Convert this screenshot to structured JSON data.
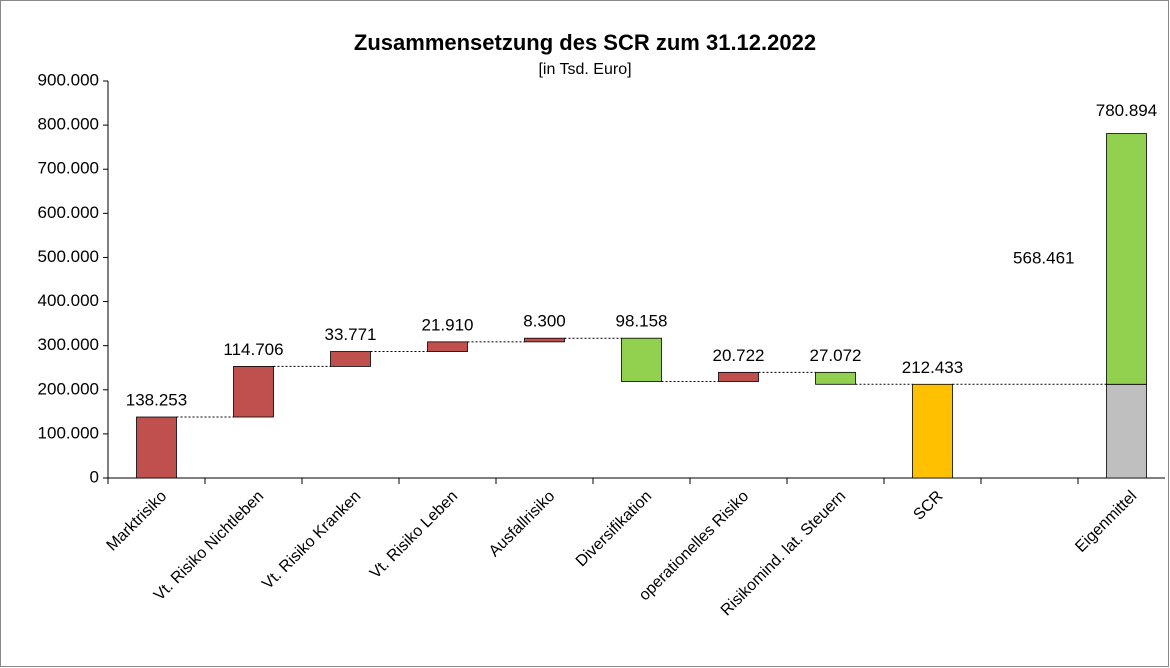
{
  "chart_data": {
    "type": "waterfall",
    "title": "Zusammensetzung des SCR zum 31.12.2022",
    "subtitle": "[in Tsd. Euro]",
    "categories": [
      "Marktrisiko",
      "Vt. Risiko Nichtleben",
      "Vt. Risiko Kranken",
      "Vt. Risiko Leben",
      "Ausfallrisiko",
      "Diversifikation",
      "operationelles Risiko",
      "Risikomind. lat. Steuern",
      "SCR",
      null,
      "Eigenmittel"
    ],
    "values": [
      138253,
      114706,
      33771,
      21910,
      8300,
      -98158,
      20722,
      -27072,
      212433,
      null,
      568461
    ],
    "value_labels": [
      "138.253",
      "114.706",
      "33.771",
      "21.910",
      "8.300",
      "98.158",
      "20.722",
      "27.072",
      "212.433",
      null,
      "568.461"
    ],
    "total_categories": [
      "SCR"
    ],
    "stack": {
      "category": "Eigenmittel",
      "base": "SCR",
      "total": {
        "value": 780894,
        "label": "780.894"
      }
    },
    "colors": {
      "increase": "#c0504d",
      "decrease": "#92d050",
      "total": "#ffc000",
      "base": "#bfbfbf"
    },
    "ylim": [
      0,
      900000
    ],
    "yticks": [
      0,
      {
        "value": 100000,
        "label": "100.000"
      },
      {
        "value": 200000,
        "label": "200.000"
      },
      {
        "value": 300000,
        "label": "300.000"
      },
      {
        "value": 400000,
        "label": "400.000"
      },
      {
        "value": 500000,
        "label": "500.000"
      },
      {
        "value": 600000,
        "label": "600.000"
      },
      {
        "value": 700000,
        "label": "700.000"
      },
      {
        "value": 800000,
        "label": "800.000"
      },
      {
        "value": 900000,
        "label": "900.000"
      }
    ],
    "grid": false
  }
}
